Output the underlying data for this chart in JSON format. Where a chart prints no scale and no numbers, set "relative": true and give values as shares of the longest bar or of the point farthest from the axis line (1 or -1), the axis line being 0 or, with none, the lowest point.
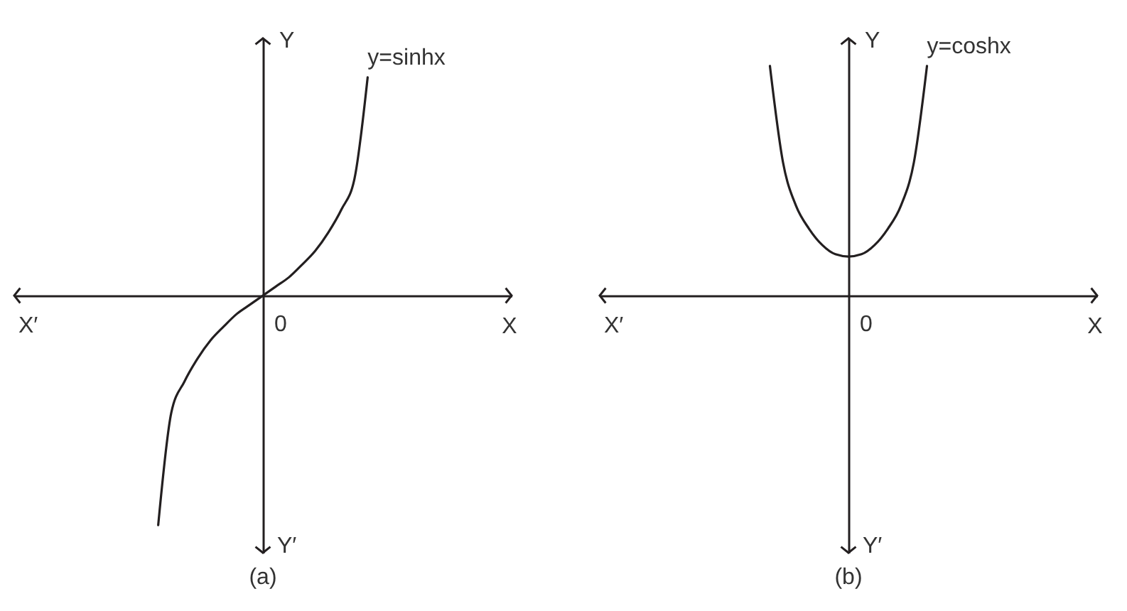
{
  "chart_data": [
    {
      "type": "line",
      "title": "(a)",
      "xlabel": "X",
      "ylabel": "Y",
      "annotations": [
        "0",
        "X′",
        "Y′"
      ],
      "relative": true,
      "categories": [
        null,
        null,
        null,
        null,
        null,
        null,
        null,
        null,
        null,
        null,
        null,
        null,
        null,
        null,
        null,
        null,
        null,
        null,
        null,
        null,
        null,
        null,
        null,
        null,
        null,
        null,
        null,
        null,
        null,
        null,
        null,
        null,
        null,
        null,
        null,
        null,
        null,
        null,
        null
      ],
      "series": [
        {
          "name": "y=sinhx",
          "color": "#231f20",
          "values": [
            null,
            null,
            null,
            null,
            null,
            null,
            null,
            null,
            null,
            null,
            null,
            -1,
            -0.51,
            -0.375,
            -0.275,
            -0.195,
            -0.135,
            -0.08,
            -0.04,
            0,
            0.04,
            0.08,
            0.135,
            0.195,
            0.275,
            0.375,
            0.51,
            0.95,
            null,
            null,
            null,
            null,
            null,
            null,
            null,
            null,
            null,
            null,
            null
          ]
        }
      ]
    },
    {
      "type": "line",
      "title": "(b)",
      "xlabel": "X",
      "ylabel": "Y",
      "annotations": [
        "0",
        "X′",
        "Y′"
      ],
      "relative": true,
      "categories": [
        null,
        null,
        null,
        null,
        null,
        null,
        null,
        null,
        null,
        null,
        null,
        null,
        null,
        null,
        null,
        null,
        null,
        null,
        null,
        null,
        null,
        null,
        null,
        null,
        null,
        null,
        null,
        null,
        null,
        null,
        null,
        null,
        null,
        null,
        null,
        null,
        null,
        null,
        null
      ],
      "series": [
        {
          "name": "y=coshx",
          "color": "#231f20",
          "values": [
            null,
            null,
            null,
            null,
            null,
            null,
            null,
            null,
            null,
            null,
            null,
            null,
            null,
            1,
            0.58,
            0.39,
            0.29,
            0.22,
            0.18,
            0.17,
            0.18,
            0.22,
            0.29,
            0.39,
            0.58,
            1,
            null,
            null,
            null,
            null,
            null,
            null,
            null,
            null,
            null,
            null,
            null,
            null,
            null
          ]
        }
      ]
    }
  ]
}
